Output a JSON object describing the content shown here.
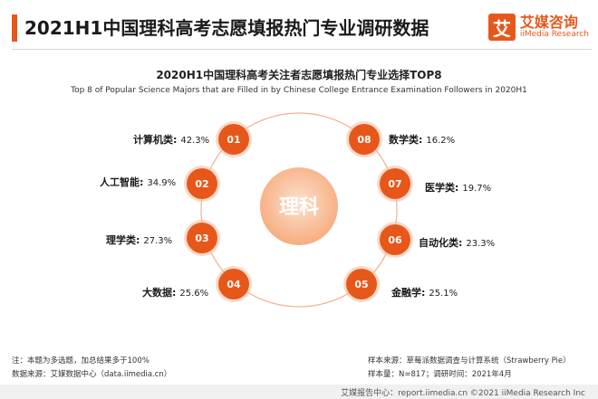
{
  "header": {
    "title": "2021H1中国理科高考志愿填报热门专业调研数据",
    "logo_mark": "艾",
    "logo_cn": "艾媒咨询",
    "logo_en": "iiMedia Research"
  },
  "colors": {
    "accent": "#e8571a",
    "bubble_shadow": "#f3c2a6",
    "center_light": "#fce1cf",
    "center_dark": "#f6a878",
    "ring": "#f0b08f"
  },
  "chart_data": {
    "type": "radial-bubble",
    "title": "2020H1中国理科高考关注者志愿填报热门专业选择TOP8",
    "subtitle": "Top 8 of Popular Science Majors that are Filled in by Chinese College Entrance Examination Followers in 2020H1",
    "center_label": "理科",
    "items": [
      {
        "rank": "01",
        "name": "计算机类:",
        "value": 42.3,
        "value_label": "42.3%"
      },
      {
        "rank": "02",
        "name": "人工智能:",
        "value": 34.9,
        "value_label": "34.9%"
      },
      {
        "rank": "03",
        "name": "理学类:",
        "value": 27.3,
        "value_label": "27.3%"
      },
      {
        "rank": "04",
        "name": "大数据:",
        "value": 25.6,
        "value_label": "25.6%"
      },
      {
        "rank": "05",
        "name": "金融学:",
        "value": 25.1,
        "value_label": "25.1%"
      },
      {
        "rank": "06",
        "name": "自动化类:",
        "value": 23.3,
        "value_label": "23.3%"
      },
      {
        "rank": "07",
        "name": "医学类:",
        "value": 19.7,
        "value_label": "19.7%"
      },
      {
        "rank": "08",
        "name": "数学类:",
        "value": 16.2,
        "value_label": "16.2%"
      }
    ]
  },
  "footer": {
    "note": "注：本题为多选题，加总结果多于100%",
    "source": "数据来源：艾媒数据中心（data.iimedia.cn）",
    "sample_source": "样本来源：草莓派数据调查与计算系统（Strawberry Pie）",
    "sample_info": "样本量：N=817；调研时间：2021年4月",
    "bar_text": "艾媒报告中心：report.iimedia.cn ©2021 iiMedia Research Inc"
  }
}
